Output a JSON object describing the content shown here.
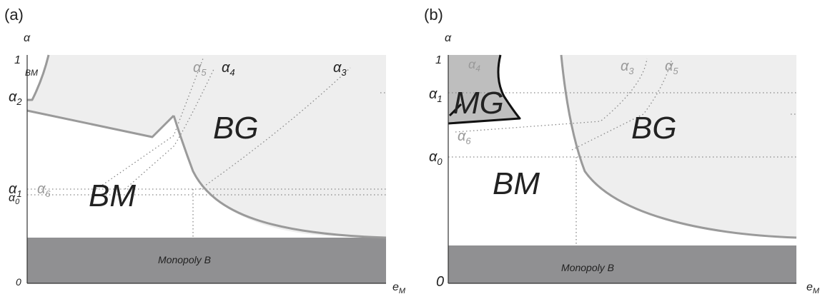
{
  "panels": [
    {
      "id": "a",
      "panel_label": "(a)",
      "y_axis_label": "α",
      "x_axis_label": "e",
      "x_axis_sub": "M",
      "tick_one": "1",
      "tick_zero": "0",
      "alpha_labels": {
        "alpha2": {
          "base": "α",
          "sub": "2"
        },
        "alpha1": {
          "base": "α",
          "sub": "1"
        },
        "alpha0": {
          "base": "α",
          "sub": "0"
        },
        "alpha6": {
          "base": "α",
          "sub": "6"
        },
        "alpha5": {
          "base": "α",
          "sub": "5"
        },
        "alpha4": {
          "base": "α",
          "sub": "4"
        },
        "alpha3": {
          "base": "α",
          "sub": "3"
        }
      },
      "regions": {
        "bm_small": "BM",
        "bm": "BM",
        "bg": "BG",
        "monopoly": "Monopoly B"
      }
    },
    {
      "id": "b",
      "panel_label": "(b)",
      "y_axis_label": "α",
      "x_axis_label": "e",
      "x_axis_sub": "M",
      "tick_one": "1",
      "tick_zero": "0",
      "alpha_labels": {
        "alpha1": {
          "base": "α",
          "sub": "1"
        },
        "alpha0": {
          "base": "α",
          "sub": "0"
        },
        "alpha4": {
          "base": "α",
          "sub": "4"
        },
        "alpha6": {
          "base": "α",
          "sub": "6"
        },
        "alpha3": {
          "base": "α",
          "sub": "3"
        },
        "alpha5": {
          "base": "α",
          "sub": "5"
        }
      },
      "regions": {
        "mg": "MG",
        "bm": "BM",
        "bg": "BG",
        "monopoly": "Monopoly B"
      }
    }
  ],
  "colors": {
    "light_region": "#eeeeee",
    "dark_region": "#909092",
    "mg_region": "#bebebe",
    "boundary": "#9a9a9a",
    "dotted": "#888888",
    "grey_label": "#999999",
    "text": "#222222"
  }
}
